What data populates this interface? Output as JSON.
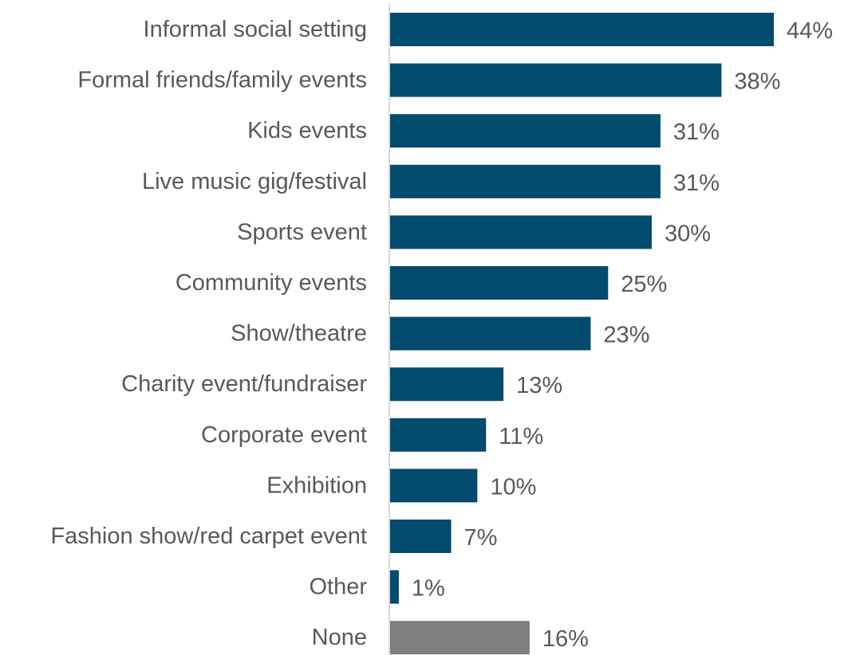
{
  "chart_data": {
    "type": "bar",
    "orientation": "horizontal",
    "categories": [
      "Informal social setting",
      "Formal friends/family events",
      "Kids events",
      "Live music gig/festival",
      "Sports event",
      "Community events",
      "Show/theatre",
      "Charity event/fundraiser",
      "Corporate event",
      "Exhibition",
      "Fashion show/red carpet event",
      "Other",
      "None"
    ],
    "values": [
      44,
      38,
      31,
      31,
      30,
      25,
      23,
      13,
      11,
      10,
      7,
      1,
      16
    ],
    "value_labels": [
      "44%",
      "38%",
      "31%",
      "31%",
      "30%",
      "25%",
      "23%",
      "13%",
      "11%",
      "10%",
      "7%",
      "1%",
      "16%"
    ],
    "bar_colors": [
      "#004b6e",
      "#004b6e",
      "#004b6e",
      "#004b6e",
      "#004b6e",
      "#004b6e",
      "#004b6e",
      "#004b6e",
      "#004b6e",
      "#004b6e",
      "#004b6e",
      "#004b6e",
      "#7f7f7f"
    ],
    "unit": "%",
    "title": "",
    "xlabel": "",
    "ylabel": "",
    "xlim": [
      0,
      44
    ],
    "grid": false,
    "legend": "none"
  }
}
